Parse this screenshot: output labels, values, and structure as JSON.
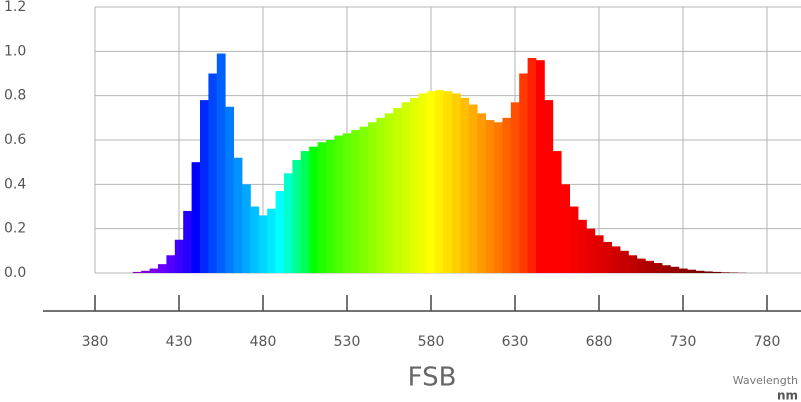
{
  "chart_data": {
    "type": "spectrum",
    "title": "FSB",
    "xlabel": "Wavelength",
    "xunit": "nm",
    "x": [
      380,
      385,
      390,
      395,
      400,
      405,
      410,
      415,
      420,
      425,
      430,
      435,
      440,
      445,
      450,
      455,
      460,
      465,
      470,
      475,
      480,
      485,
      490,
      495,
      500,
      505,
      510,
      515,
      520,
      525,
      530,
      535,
      540,
      545,
      550,
      555,
      560,
      565,
      570,
      575,
      580,
      585,
      590,
      595,
      600,
      605,
      610,
      615,
      620,
      625,
      630,
      635,
      640,
      645,
      650,
      655,
      660,
      665,
      670,
      675,
      680,
      685,
      690,
      695,
      700,
      705,
      710,
      715,
      720,
      725,
      730,
      735,
      740,
      745,
      750,
      755,
      760,
      765,
      770,
      775,
      780
    ],
    "values": [
      0,
      0,
      0,
      0,
      0,
      0.005,
      0.01,
      0.02,
      0.04,
      0.08,
      0.15,
      0.28,
      0.5,
      0.78,
      0.9,
      0.99,
      0.75,
      0.52,
      0.4,
      0.3,
      0.26,
      0.29,
      0.37,
      0.45,
      0.51,
      0.55,
      0.57,
      0.59,
      0.6,
      0.62,
      0.63,
      0.645,
      0.66,
      0.68,
      0.7,
      0.72,
      0.745,
      0.77,
      0.79,
      0.81,
      0.82,
      0.825,
      0.82,
      0.81,
      0.79,
      0.76,
      0.72,
      0.69,
      0.68,
      0.7,
      0.77,
      0.9,
      0.97,
      0.96,
      0.78,
      0.55,
      0.4,
      0.3,
      0.24,
      0.2,
      0.17,
      0.14,
      0.12,
      0.1,
      0.08,
      0.065,
      0.055,
      0.045,
      0.035,
      0.028,
      0.02,
      0.015,
      0.01,
      0.007,
      0.005,
      0.003,
      0.002,
      0.001,
      0,
      0,
      0
    ],
    "xlim": [
      380,
      780
    ],
    "xticks": [
      380,
      430,
      480,
      530,
      580,
      630,
      680,
      730,
      780
    ],
    "ylim": [
      0,
      1.2
    ],
    "yticks": [
      {
        "value": 0,
        "label": "0.0"
      },
      0.2,
      0.4,
      0.6,
      0.8,
      {
        "value": 1,
        "label": "1.0"
      },
      1.2
    ],
    "grid": true
  }
}
